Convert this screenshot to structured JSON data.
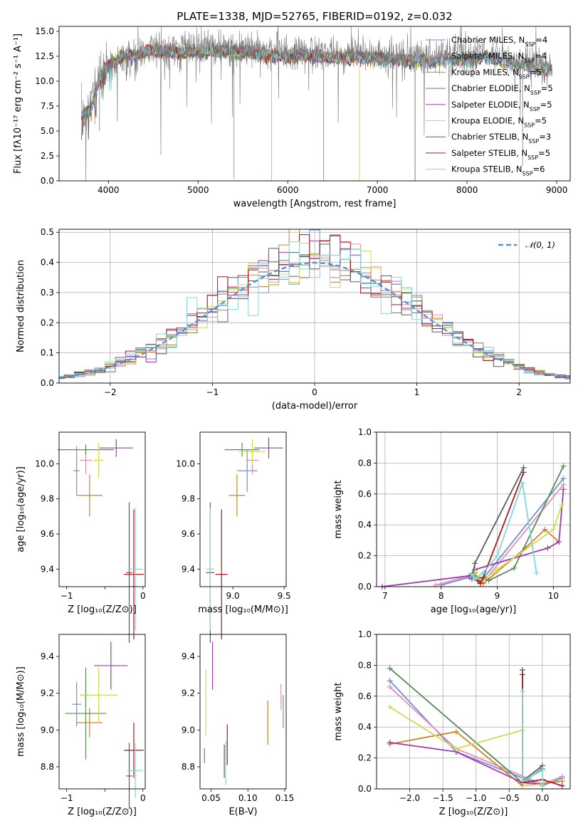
{
  "colors": [
    "#6f8fd8",
    "#e78fb3",
    "#d1812b",
    "#5a8a5a",
    "#a03ab0",
    "#cddc50",
    "#5b5b5b",
    "#aa1a1a",
    "#80d8d8"
  ],
  "legend": [
    {
      "pre": "Chabrier MILES, N",
      "sub": "SSP",
      "post": "=4"
    },
    {
      "pre": "Salpeter MILES, N",
      "sub": "SSP",
      "post": "=4"
    },
    {
      "pre": "Kroupa MILES, N",
      "sub": "SSP",
      "post": "=5"
    },
    {
      "pre": "Chabrier ELODIE, N",
      "sub": "SSP",
      "post": "=5"
    },
    {
      "pre": "Salpeter ELODIE, N",
      "sub": "SSP",
      "post": "=5"
    },
    {
      "pre": "Kroupa ELODIE, N",
      "sub": "SSP",
      "post": "=5"
    },
    {
      "pre": "Chabrier STELIB, N",
      "sub": "SSP",
      "post": "=3"
    },
    {
      "pre": "Salpeter STELIB, N",
      "sub": "SSP",
      "post": "=5"
    },
    {
      "pre": "Kroupa STELIB, N",
      "sub": "SSP",
      "post": "=6"
    }
  ],
  "chart_data": [
    {
      "id": "spectrum",
      "type": "line",
      "title": "PLATE=1338, MJD=52765, FIBERID=0192, z=0.032",
      "xlabel": "wavelength [Angstrom, rest frame]",
      "ylabel": "Flux [fλ10⁻¹⁷ erg cm⁻² s⁻¹ A⁻¹]",
      "xlim": [
        3450,
        9150
      ],
      "ylim": [
        0,
        15.5
      ],
      "xticks": [
        4000,
        5000,
        6000,
        7000,
        8000,
        9000
      ],
      "yticks": [
        0.0,
        2.5,
        5.0,
        7.5,
        10.0,
        12.5,
        15.0
      ],
      "ytick_labels": [
        "0.0",
        "2.5",
        "5.0",
        "7.5",
        "10.0",
        "12.5",
        "15.0"
      ],
      "data_x": [
        3700,
        3800,
        3900,
        4000,
        4200,
        4500,
        4800,
        5000,
        5200,
        5500,
        5800,
        6000,
        6200,
        6500,
        6800,
        7000,
        7200,
        7400,
        7600,
        7800,
        8000,
        8200,
        8400,
        8600,
        8800,
        8950
      ],
      "data_y": [
        6.5,
        8.0,
        10.5,
        11.5,
        12.5,
        13.2,
        13.0,
        13.3,
        13.4,
        13.3,
        13.0,
        12.8,
        13.0,
        12.8,
        12.9,
        12.6,
        12.4,
        12.3,
        12.4,
        12.6,
        12.5,
        12.8,
        12.4,
        12.0,
        11.8,
        11.5
      ],
      "model_y": [
        6.2,
        7.2,
        10.2,
        11.6,
        12.6,
        13.0,
        12.9,
        12.9,
        13.0,
        12.9,
        12.6,
        12.5,
        12.6,
        12.3,
        12.4,
        12.3,
        12.1,
        12.0,
        12.0,
        12.2,
        12.1,
        12.4,
        12.0,
        11.6,
        11.4,
        11.0
      ],
      "model_end_x": [
        8950,
        8950,
        7420,
        7420,
        8950,
        8950,
        8950,
        7420,
        8950
      ],
      "legend_placement": "upper right"
    },
    {
      "id": "residual-hist",
      "type": "line",
      "xlabel": "(data-model)/error",
      "ylabel": "Normed distribution",
      "xlim": [
        -2.5,
        2.5
      ],
      "ylim": [
        0,
        0.51
      ],
      "xticks": [
        -2,
        -1,
        0,
        1,
        2
      ],
      "xtick_labels": [
        "−2",
        "−1",
        "0",
        "1",
        "2"
      ],
      "yticks": [
        0.0,
        0.1,
        0.2,
        0.3,
        0.4,
        0.5
      ],
      "ytick_labels": [
        "0.0",
        "0.1",
        "0.2",
        "0.3",
        "0.4",
        "0.5"
      ],
      "grid": true,
      "bin_width": 0.1,
      "gaussian_label": "𝒩(0, 1)",
      "legend_placement": "upper right"
    },
    {
      "id": "age-vs-Z",
      "type": "scatter",
      "xlabel": "Z [log₁₀(Z/Z⊙)]",
      "ylabel": "age  [log₁₀(age/yr)]",
      "xlim": [
        -1.1,
        0.03
      ],
      "ylim": [
        9.3,
        10.18
      ],
      "xticks": [
        -1,
        -0.5,
        0
      ],
      "xtick_labels": [
        "−1",
        "",
        "0"
      ],
      "yticks": [
        9.4,
        9.6,
        9.8,
        10.0
      ],
      "ytick_labels": [
        "9.4",
        "9.6",
        "9.8",
        "10.0"
      ],
      "points": [
        {
          "x": -0.87,
          "y": 9.96,
          "xerr": 0.04,
          "yerr": 0.14
        },
        {
          "x": -0.75,
          "y": 10.02,
          "xerr": 0.08,
          "yerr": 0.08
        },
        {
          "x": -0.7,
          "y": 9.82,
          "xerr": 0.17,
          "yerr": 0.12
        },
        {
          "x": -0.75,
          "y": 10.08,
          "xerr": 0.37,
          "yerr": 0.03
        },
        {
          "x": -0.35,
          "y": 10.09,
          "xerr": 0.22,
          "yerr": 0.05
        },
        {
          "x": -0.58,
          "y": 10.02,
          "xerr": 0.07,
          "yerr": 0.1
        },
        {
          "x": -0.18,
          "y": 9.38,
          "xerr": 0.04,
          "yerr": 0.4
        },
        {
          "x": -0.12,
          "y": 9.37,
          "xerr": 0.13,
          "yerr": 0.37
        },
        {
          "x": -0.1,
          "y": 9.4,
          "xerr": 0.1,
          "yerr": 0.35
        }
      ]
    },
    {
      "id": "age-vs-mass",
      "type": "scatter",
      "xlabel": "mass [log₁₀(M/M⊙)]",
      "ylabel": "",
      "xlim": [
        8.68,
        9.52
      ],
      "ylim": [
        9.3,
        10.18
      ],
      "xticks": [
        9.0,
        9.5
      ],
      "xtick_labels": [
        "9.0",
        "9.5"
      ],
      "yticks": [
        9.4,
        9.6,
        9.8,
        10.0
      ],
      "ytick_labels": [
        "9.4",
        "9.6",
        "9.8",
        "10.0"
      ],
      "points": [
        {
          "x": 9.14,
          "y": 9.96,
          "xerr": 0.1,
          "yerr": 0.12
        },
        {
          "x": 9.19,
          "y": 10.02,
          "xerr": 0.06,
          "yerr": 0.08
        },
        {
          "x": 9.04,
          "y": 9.82,
          "xerr": 0.08,
          "yerr": 0.12
        },
        {
          "x": 9.09,
          "y": 10.08,
          "xerr": 0.17,
          "yerr": 0.04
        },
        {
          "x": 9.35,
          "y": 10.09,
          "xerr": 0.14,
          "yerr": 0.06
        },
        {
          "x": 9.19,
          "y": 10.07,
          "xerr": 0.13,
          "yerr": 0.07
        },
        {
          "x": 8.78,
          "y": 9.38,
          "xerr": 0.04,
          "yerr": 0.4
        },
        {
          "x": 8.89,
          "y": 9.37,
          "xerr": 0.06,
          "yerr": 0.37
        },
        {
          "x": 8.78,
          "y": 9.4,
          "xerr": 0.04,
          "yerr": 0.35
        }
      ]
    },
    {
      "id": "weight-vs-age",
      "type": "line",
      "xlabel": "age  [log₁₀(age/yr)]",
      "ylabel": "mass weight",
      "xlim": [
        6.85,
        10.3
      ],
      "ylim": [
        0,
        1.0
      ],
      "xticks": [
        7,
        8,
        9,
        10
      ],
      "xtick_labels": [
        "7",
        "8",
        "9",
        "10"
      ],
      "yticks": [
        0.0,
        0.2,
        0.4,
        0.6,
        0.8,
        1.0
      ],
      "ytick_labels": [
        "0.0",
        "0.2",
        "0.4",
        "0.6",
        "0.8",
        "1.0"
      ],
      "grid": true,
      "series": [
        {
          "x": [
            8.0,
            8.5,
            8.7,
            10.18
          ],
          "y": [
            0.01,
            0.06,
            0.03,
            0.7
          ]
        },
        {
          "x": [
            7.9,
            8.5,
            8.8,
            10.18
          ],
          "y": [
            0.01,
            0.07,
            0.05,
            0.66
          ]
        },
        {
          "x": [
            8.6,
            8.75,
            9.5,
            9.85,
            10.1
          ],
          "y": [
            0.09,
            0.02,
            0.25,
            0.37,
            0.29
          ]
        },
        {
          "x": [
            8.6,
            8.85,
            9.3,
            10.18
          ],
          "y": [
            0.07,
            0.04,
            0.12,
            0.78
          ]
        },
        {
          "x": [
            6.95,
            8.5,
            8.6,
            9.9,
            10.1,
            10.18
          ],
          "y": [
            0.0,
            0.07,
            0.11,
            0.25,
            0.29,
            0.63
          ]
        },
        {
          "x": [
            8.6,
            8.7,
            9.0,
            10.0,
            10.15
          ],
          "y": [
            0.1,
            0.03,
            0.11,
            0.37,
            0.53
          ]
        },
        {
          "x": [
            8.55,
            8.6,
            9.47
          ],
          "y": [
            0.05,
            0.15,
            0.77
          ]
        },
        {
          "x": [
            8.65,
            8.7,
            8.75,
            9.47
          ],
          "y": [
            0.04,
            0.02,
            0.06,
            0.74
          ]
        },
        {
          "x": [
            8.55,
            8.6,
            8.75,
            9.0,
            9.45,
            9.7
          ],
          "y": [
            0.08,
            0.05,
            0.09,
            0.2,
            0.67,
            0.09
          ]
        }
      ]
    },
    {
      "id": "mass-vs-Z",
      "type": "scatter",
      "xlabel": "Z [log₁₀(Z/Z⊙)]",
      "ylabel": "mass [log₁₀(M/M⊙)]",
      "xlim": [
        -1.1,
        0.03
      ],
      "ylim": [
        8.68,
        9.52
      ],
      "xticks": [
        -1,
        -0.5,
        0
      ],
      "xtick_labels": [
        "−1",
        "",
        "0"
      ],
      "yticks": [
        8.8,
        9.0,
        9.2,
        9.4
      ],
      "ytick_labels": [
        "8.8",
        "9.0",
        "9.2",
        "9.4"
      ],
      "points": [
        {
          "x": -0.87,
          "y": 9.14,
          "xerr": 0.06,
          "yerr": 0.12
        },
        {
          "x": -0.75,
          "y": 9.19,
          "xerr": 0.08,
          "yerr": 0.06
        },
        {
          "x": -0.7,
          "y": 9.04,
          "xerr": 0.17,
          "yerr": 0.08
        },
        {
          "x": -0.75,
          "y": 9.09,
          "xerr": 0.27,
          "yerr": 0.25
        },
        {
          "x": -0.42,
          "y": 9.35,
          "xerr": 0.22,
          "yerr": 0.13
        },
        {
          "x": -0.58,
          "y": 9.19,
          "xerr": 0.25,
          "yerr": 0.15
        },
        {
          "x": -0.18,
          "y": 8.75,
          "xerr": 0.04,
          "yerr": 0.18
        },
        {
          "x": -0.12,
          "y": 8.89,
          "xerr": 0.13,
          "yerr": 0.15
        },
        {
          "x": -0.1,
          "y": 8.78,
          "xerr": 0.1,
          "yerr": 0.15
        }
      ]
    },
    {
      "id": "mass-vs-ebv",
      "type": "scatter",
      "xlabel": "E(B-V)",
      "ylabel": "",
      "xlim": [
        0.035,
        0.152
      ],
      "ylim": [
        8.68,
        9.52
      ],
      "xticks": [
        0.05,
        0.1,
        0.15
      ],
      "xtick_labels": [
        "0.05",
        "0.10",
        "0.15"
      ],
      "yticks": [
        8.8,
        9.0,
        9.2,
        9.4
      ],
      "ytick_labels": [
        "8.8",
        "9.0",
        "9.2",
        "9.4"
      ],
      "points": [
        {
          "x": 0.148,
          "y": 9.1,
          "xerr": 0,
          "yerr": 0.09
        },
        {
          "x": 0.145,
          "y": 9.18,
          "xerr": 0,
          "yerr": 0.07
        },
        {
          "x": 0.127,
          "y": 9.04,
          "xerr": 0,
          "yerr": 0.12
        },
        {
          "x": 0.041,
          "y": 8.86,
          "xerr": 0,
          "yerr": 0.04
        },
        {
          "x": 0.052,
          "y": 9.35,
          "xerr": 0,
          "yerr": 0.13
        },
        {
          "x": 0.043,
          "y": 9.15,
          "xerr": 0,
          "yerr": 0.18
        },
        {
          "x": 0.068,
          "y": 8.83,
          "xerr": 0,
          "yerr": 0.09
        },
        {
          "x": 0.072,
          "y": 8.92,
          "xerr": 0,
          "yerr": 0.11
        },
        {
          "x": 0.07,
          "y": 8.82,
          "xerr": 0,
          "yerr": 0.12
        }
      ]
    },
    {
      "id": "weight-vs-Z",
      "type": "line",
      "xlabel": "Z [log₁₀(Z/Z⊙)]",
      "ylabel": "mass weight",
      "xlim": [
        -2.5,
        0.42
      ],
      "ylim": [
        0,
        1.0
      ],
      "xticks": [
        -2.0,
        -1.5,
        -1.0,
        -0.5,
        0.0
      ],
      "xtick_labels": [
        "−2.0",
        "−1.5",
        "−1.0",
        "−0.5",
        "0.0"
      ],
      "yticks": [
        0.0,
        0.2,
        0.4,
        0.6,
        0.8,
        1.0
      ],
      "ytick_labels": [
        "0.0",
        "0.2",
        "0.4",
        "0.6",
        "0.8",
        "1.0"
      ],
      "grid": true,
      "series": [
        {
          "x": [
            -2.3,
            -1.3,
            0.0,
            0.3
          ],
          "y": [
            0.7,
            0.24,
            0.02,
            0.07
          ]
        },
        {
          "x": [
            -2.3,
            -1.3,
            0.0,
            0.3
          ],
          "y": [
            0.66,
            0.26,
            0.03,
            0.08
          ]
        },
        {
          "x": [
            -2.3,
            -1.3,
            -0.3,
            0.3
          ],
          "y": [
            0.29,
            0.37,
            0.02,
            0.05
          ]
        },
        {
          "x": [
            -2.3,
            -0.3,
            0.0
          ],
          "y": [
            0.78,
            0.04,
            0.13
          ]
        },
        {
          "x": [
            -2.3,
            -1.3,
            -0.3,
            0.0
          ],
          "y": [
            0.3,
            0.24,
            0.04,
            0.03
          ]
        },
        {
          "x": [
            -2.3,
            -1.3,
            -0.3,
            -0.3,
            0.0
          ],
          "y": [
            0.53,
            0.26,
            0.38,
            0.02,
            0.03
          ]
        },
        {
          "x": [
            -0.3,
            -0.3,
            0.0
          ],
          "y": [
            0.77,
            0.05,
            0.15
          ]
        },
        {
          "x": [
            -0.3,
            -0.3,
            0.0,
            0.3
          ],
          "y": [
            0.74,
            0.04,
            0.06,
            0.02
          ]
        },
        {
          "x": [
            -0.3,
            -0.3,
            0.0,
            0.0
          ],
          "y": [
            0.63,
            0.05,
            0.12,
            0.02
          ]
        }
      ]
    }
  ]
}
